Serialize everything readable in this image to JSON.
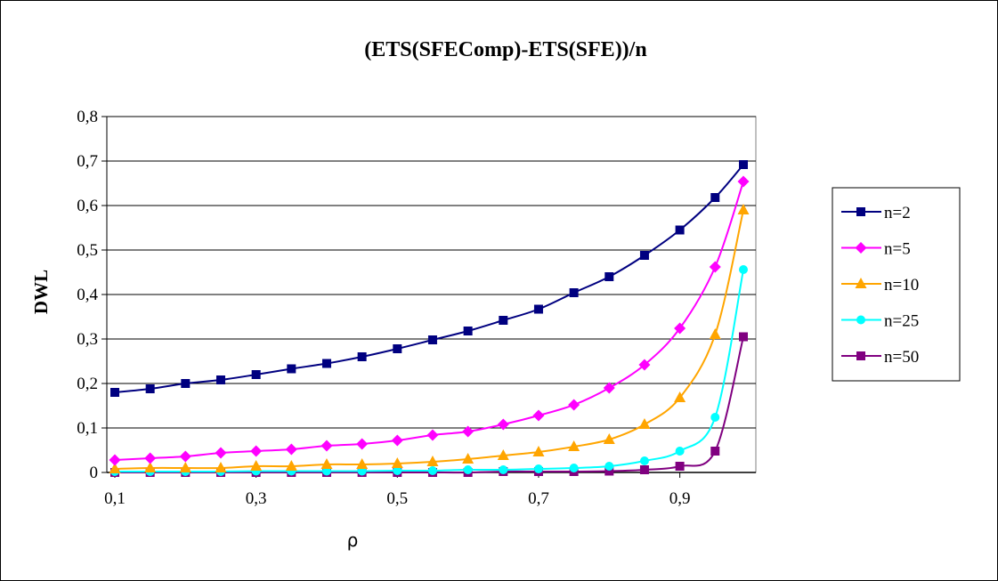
{
  "chart_data": {
    "type": "line",
    "title": "(ETS(SFEComp)-ETS(SFE))/n",
    "xlabel": "ρ",
    "ylabel": "DWL",
    "xlim": [
      0.1,
      0.99
    ],
    "ylim": [
      0,
      0.8
    ],
    "x_ticks": [
      "0,1",
      "0,3",
      "0,5",
      "0,7",
      "0,9"
    ],
    "x_tick_values": [
      0.1,
      0.3,
      0.5,
      0.7,
      0.9
    ],
    "y_ticks": [
      "0",
      "0,1",
      "0,2",
      "0,3",
      "0,4",
      "0,5",
      "0,6",
      "0,7",
      "0,8"
    ],
    "y_tick_values": [
      0,
      0.1,
      0.2,
      0.3,
      0.4,
      0.5,
      0.6,
      0.7,
      0.8
    ],
    "grid": "horizontal",
    "legend_position": "right",
    "x": [
      0.1,
      0.15,
      0.2,
      0.25,
      0.3,
      0.35,
      0.4,
      0.45,
      0.5,
      0.55,
      0.6,
      0.65,
      0.7,
      0.75,
      0.8,
      0.85,
      0.9,
      0.95,
      0.99
    ],
    "series": [
      {
        "name": "n=2",
        "color": "#000080",
        "marker": "square",
        "values": [
          0.18,
          0.188,
          0.2,
          0.208,
          0.22,
          0.233,
          0.245,
          0.26,
          0.278,
          0.298,
          0.318,
          0.342,
          0.367,
          0.404,
          0.44,
          0.488,
          0.545,
          0.618,
          0.692
        ]
      },
      {
        "name": "n=5",
        "color": "#ff00ff",
        "marker": "diamond",
        "values": [
          0.028,
          0.032,
          0.036,
          0.044,
          0.048,
          0.052,
          0.06,
          0.064,
          0.072,
          0.084,
          0.092,
          0.108,
          0.128,
          0.152,
          0.19,
          0.242,
          0.324,
          0.462,
          0.654
        ]
      },
      {
        "name": "n=10",
        "color": "#ffa500",
        "marker": "triangle",
        "values": [
          0.008,
          0.01,
          0.01,
          0.01,
          0.014,
          0.014,
          0.018,
          0.018,
          0.02,
          0.024,
          0.03,
          0.038,
          0.046,
          0.058,
          0.074,
          0.108,
          0.168,
          0.31,
          0.59
        ]
      },
      {
        "name": "n=25",
        "color": "#00ffff",
        "marker": "circle",
        "values": [
          0.002,
          0.002,
          0.002,
          0.002,
          0.003,
          0.003,
          0.003,
          0.003,
          0.004,
          0.004,
          0.006,
          0.006,
          0.008,
          0.01,
          0.014,
          0.026,
          0.048,
          0.124,
          0.456
        ]
      },
      {
        "name": "n=50",
        "color": "#800080",
        "marker": "square",
        "values": [
          0,
          0,
          0,
          0,
          0,
          0,
          0,
          0,
          0,
          0,
          0,
          0.002,
          0.002,
          0.002,
          0.003,
          0.006,
          0.014,
          0.048,
          0.305
        ]
      }
    ]
  }
}
